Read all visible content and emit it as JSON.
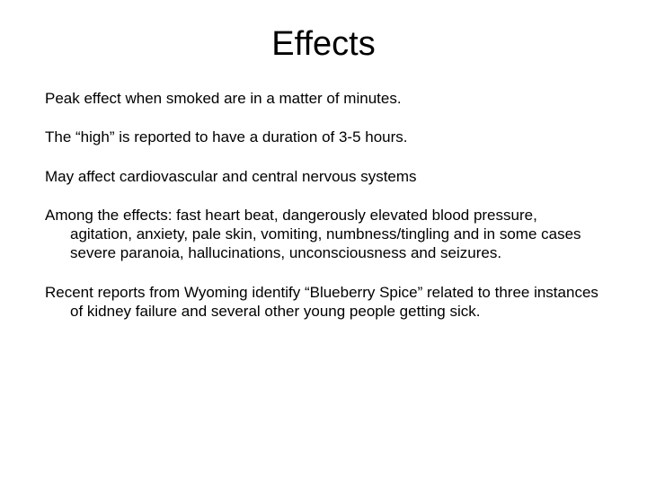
{
  "slide": {
    "title": "Effects",
    "title_fontsize": 38,
    "title_color": "#000000",
    "background_color": "#ffffff",
    "body_fontsize": 17,
    "body_color": "#000000",
    "paragraphs": [
      "Peak effect when smoked are in a matter of minutes.",
      "The “high” is reported to have a duration of 3-5 hours.",
      "May affect cardiovascular and central nervous systems",
      "Among the effects: fast heart beat, dangerously elevated blood pressure, agitation, anxiety, pale skin, vomiting, numbness/tingling and in some cases severe paranoia, hallucinations, unconsciousness and seizures.",
      "Recent reports from Wyoming identify “Blueberry Spice” related to three instances of kidney failure and several other young people getting sick."
    ]
  }
}
